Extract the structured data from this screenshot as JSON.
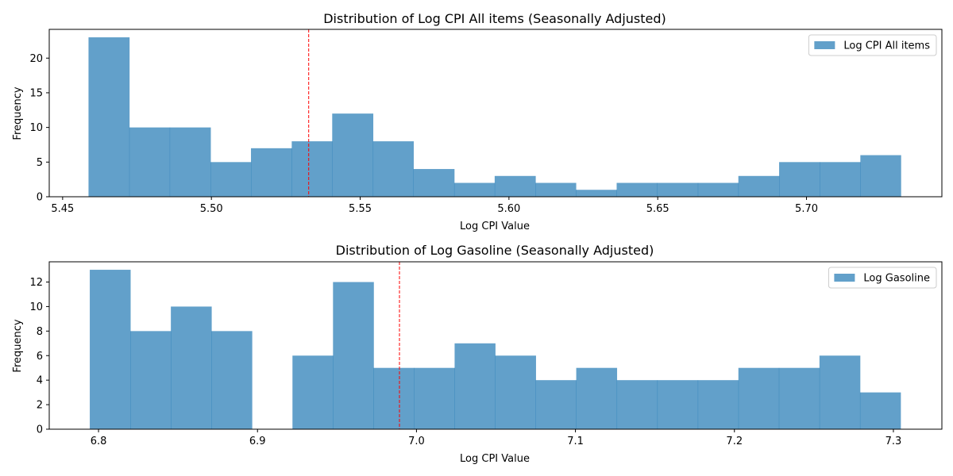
{
  "chart_data": [
    {
      "type": "bar",
      "title": "Distribution of Log CPI All items (Seasonally Adjusted)",
      "xlabel": "Log CPI Value",
      "ylabel": "Frequency",
      "xlim": [
        5.4455,
        5.7455
      ],
      "ylim": [
        0,
        24.15
      ],
      "xticks": [
        "5.45",
        "5.50",
        "5.55",
        "5.60",
        "5.65",
        "5.70"
      ],
      "xtick_values": [
        5.45,
        5.5,
        5.55,
        5.6,
        5.65,
        5.7
      ],
      "yticks": [
        "0",
        "5",
        "10",
        "15",
        "20"
      ],
      "ytick_values": [
        0,
        5,
        10,
        15,
        20
      ],
      "bin_edges": [
        5.4587,
        5.4724,
        5.486,
        5.4997,
        5.5133,
        5.527,
        5.5406,
        5.5543,
        5.5679,
        5.5816,
        5.5952,
        5.6089,
        5.6225,
        5.6362,
        5.6498,
        5.6635,
        5.6771,
        5.6908,
        5.7044,
        5.7181,
        5.7317
      ],
      "counts": [
        23,
        10,
        10,
        5,
        7,
        8,
        12,
        8,
        4,
        2,
        3,
        2,
        1,
        2,
        2,
        2,
        3,
        5,
        5,
        6
      ],
      "mean": 5.5327,
      "series": [
        {
          "name": "Log CPI All items",
          "color": "#1f77b4"
        }
      ],
      "legend": "top-right",
      "mean_line_color": "#ff0000",
      "grid": false
    },
    {
      "type": "bar",
      "title": "Distribution of Log Gasoline (Seasonally Adjusted)",
      "xlabel": "Log CPI Value",
      "ylabel": "Frequency",
      "xlim": [
        6.769,
        7.3305
      ],
      "ylim": [
        0,
        13.65
      ],
      "xticks": [
        "6.8",
        "6.9",
        "7.0",
        "7.1",
        "7.2",
        "7.3"
      ],
      "xtick_values": [
        6.8,
        6.9,
        7.0,
        7.1,
        7.2,
        7.3
      ],
      "yticks": [
        "0",
        "2",
        "4",
        "6",
        "8",
        "10",
        "12"
      ],
      "ytick_values": [
        0,
        2,
        4,
        6,
        8,
        10,
        12
      ],
      "bin_edges": [
        6.7945,
        6.82,
        6.8455,
        6.871,
        6.8965,
        6.922,
        6.9475,
        6.973,
        6.9985,
        7.024,
        7.0495,
        7.075,
        7.1005,
        7.126,
        7.1515,
        7.177,
        7.2025,
        7.228,
        7.2535,
        7.279,
        7.3045
      ],
      "counts": [
        13,
        8,
        10,
        8,
        0,
        6,
        12,
        5,
        5,
        7,
        6,
        4,
        5,
        4,
        4,
        4,
        5,
        5,
        6,
        3
      ],
      "mean": 6.9893,
      "series": [
        {
          "name": "Log Gasoline",
          "color": "#1f77b4"
        }
      ],
      "legend": "top-right",
      "mean_line_color": "#ff0000",
      "grid": false
    }
  ]
}
